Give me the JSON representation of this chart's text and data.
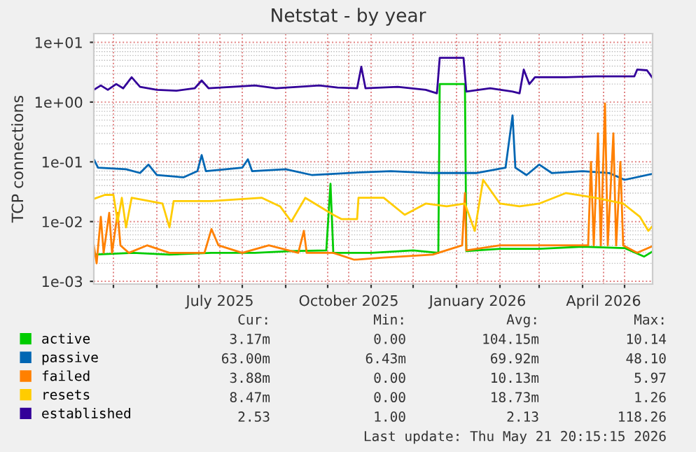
{
  "chart_data": {
    "type": "line",
    "title": "Netstat - by year",
    "ylabel": "TCP connections",
    "log": "y",
    "grid": true,
    "legend": "bottom left",
    "marker": "none",
    "line_style": "solid",
    "xlim": [
      "2025-04-17",
      "2026-05-21"
    ],
    "xticks": [
      {
        "value": "2025-05-01",
        "label": null
      },
      {
        "value": "2025-06-01",
        "label": null
      },
      {
        "value": "2025-07-01",
        "label": null
      },
      {
        "value": "2025-07-16",
        "label": "July 2025"
      },
      {
        "value": "2025-08-01",
        "label": null
      },
      {
        "value": "2025-09-01",
        "label": null
      },
      {
        "value": "2025-10-01",
        "label": null
      },
      {
        "value": "2025-10-16",
        "label": "October 2025"
      },
      {
        "value": "2025-11-01",
        "label": null
      },
      {
        "value": "2025-12-01",
        "label": null
      },
      {
        "value": "2026-01-01",
        "label": null
      },
      {
        "value": "2026-01-16",
        "label": "January 2026"
      },
      {
        "value": "2026-02-01",
        "label": null
      },
      {
        "value": "2026-03-01",
        "label": null
      },
      {
        "value": "2026-04-01",
        "label": null
      },
      {
        "value": "2026-04-16",
        "label": "April 2026"
      },
      {
        "value": "2026-05-01",
        "label": null
      }
    ],
    "ylim": [
      0.0009,
      14
    ],
    "yticks": [
      {
        "value": 0.001,
        "label": "1e-03"
      },
      {
        "value": 0.01,
        "label": "1e-02"
      },
      {
        "value": 0.1,
        "label": "1e-01"
      },
      {
        "value": 1,
        "label": "1e+00"
      },
      {
        "value": 10,
        "label": "1e+01"
      }
    ],
    "series": [
      {
        "name": "active",
        "color": "#00cc00",
        "x": [
          "2025-04-17",
          "2025-05-15",
          "2025-06-10",
          "2025-07-10",
          "2025-08-10",
          "2025-09-05",
          "2025-09-30",
          "2025-10-03",
          "2025-10-05",
          "2025-11-01",
          "2025-12-01",
          "2025-12-19",
          "2025-12-20",
          "2026-01-07",
          "2026-01-08",
          "2026-02-01",
          "2026-03-01",
          "2026-04-01",
          "2026-05-01",
          "2026-05-15",
          "2026-05-21"
        ],
        "values": [
          0.0028,
          0.003,
          0.0028,
          0.003,
          0.003,
          0.0032,
          0.0033,
          0.043,
          0.003,
          0.003,
          0.0033,
          0.003,
          2.0,
          2.0,
          0.0032,
          0.0035,
          0.0035,
          0.0038,
          0.0036,
          0.0026,
          0.00317
        ]
      },
      {
        "name": "passive",
        "color": "#0066b3",
        "x": [
          "2025-04-17",
          "2025-04-20",
          "2025-05-10",
          "2025-05-20",
          "2025-05-26",
          "2025-06-01",
          "2025-06-20",
          "2025-06-30",
          "2025-07-03",
          "2025-07-06",
          "2025-08-01",
          "2025-08-05",
          "2025-08-08",
          "2025-09-01",
          "2025-09-20",
          "2025-10-15",
          "2025-11-15",
          "2025-12-15",
          "2026-01-15",
          "2026-02-05",
          "2026-02-10",
          "2026-02-12",
          "2026-02-20",
          "2026-03-01",
          "2026-03-10",
          "2026-04-01",
          "2026-04-20",
          "2026-05-01",
          "2026-05-21"
        ],
        "values": [
          0.11,
          0.08,
          0.075,
          0.065,
          0.09,
          0.06,
          0.055,
          0.07,
          0.13,
          0.07,
          0.08,
          0.11,
          0.07,
          0.075,
          0.06,
          0.065,
          0.07,
          0.065,
          0.065,
          0.08,
          0.6,
          0.08,
          0.06,
          0.09,
          0.065,
          0.07,
          0.065,
          0.05,
          0.063
        ]
      },
      {
        "name": "failed",
        "color": "#ff8000",
        "x": [
          "2025-04-17",
          "2025-04-19",
          "2025-04-22",
          "2025-04-24",
          "2025-04-28",
          "2025-04-30",
          "2025-05-04",
          "2025-05-06",
          "2025-05-12",
          "2025-05-25",
          "2025-06-10",
          "2025-07-05",
          "2025-07-10",
          "2025-07-15",
          "2025-08-01",
          "2025-08-20",
          "2025-09-10",
          "2025-09-14",
          "2025-09-16",
          "2025-10-05",
          "2025-10-20",
          "2025-11-10",
          "2025-12-15",
          "2026-01-05",
          "2026-01-07",
          "2026-01-08",
          "2026-02-01",
          "2026-03-01",
          "2026-04-05",
          "2026-04-07",
          "2026-04-09",
          "2026-04-12",
          "2026-04-14",
          "2026-04-17",
          "2026-04-19",
          "2026-04-23",
          "2026-04-25",
          "2026-04-28",
          "2026-04-30",
          "2026-05-10",
          "2026-05-21"
        ],
        "values": [
          0.004,
          0.002,
          0.012,
          0.003,
          0.014,
          0.003,
          0.014,
          0.004,
          0.003,
          0.004,
          0.003,
          0.003,
          0.0075,
          0.004,
          0.003,
          0.004,
          0.003,
          0.007,
          0.003,
          0.003,
          0.0023,
          0.0025,
          0.0028,
          0.004,
          0.03,
          0.0033,
          0.004,
          0.004,
          0.004,
          0.1,
          0.004,
          0.3,
          0.004,
          0.95,
          0.004,
          0.3,
          0.004,
          0.1,
          0.004,
          0.003,
          0.00388
        ]
      },
      {
        "name": "resets",
        "color": "#ffcc00",
        "x": [
          "2025-04-17",
          "2025-04-25",
          "2025-05-01",
          "2025-05-04",
          "2025-05-07",
          "2025-05-10",
          "2025-05-14",
          "2025-06-05",
          "2025-06-10",
          "2025-06-13",
          "2025-07-10",
          "2025-08-15",
          "2025-08-28",
          "2025-09-05",
          "2025-09-15",
          "2025-10-05",
          "2025-10-11",
          "2025-10-22",
          "2025-10-23",
          "2025-11-10",
          "2025-11-25",
          "2025-12-10",
          "2025-12-25",
          "2026-01-07",
          "2026-01-14",
          "2026-01-20",
          "2026-02-01",
          "2026-02-15",
          "2026-03-01",
          "2026-03-20",
          "2026-04-10",
          "2026-04-30",
          "2026-05-12",
          "2026-05-18",
          "2026-05-21"
        ],
        "values": [
          0.024,
          0.028,
          0.028,
          0.01,
          0.025,
          0.008,
          0.025,
          0.02,
          0.008,
          0.022,
          0.022,
          0.025,
          0.018,
          0.01,
          0.025,
          0.013,
          0.011,
          0.011,
          0.025,
          0.025,
          0.013,
          0.02,
          0.018,
          0.02,
          0.007,
          0.05,
          0.02,
          0.018,
          0.02,
          0.03,
          0.025,
          0.02,
          0.012,
          0.007,
          0.00847
        ]
      },
      {
        "name": "established",
        "color": "#330099",
        "x": [
          "2025-04-17",
          "2025-04-22",
          "2025-04-27",
          "2025-05-03",
          "2025-05-08",
          "2025-05-14",
          "2025-05-20",
          "2025-06-01",
          "2025-06-15",
          "2025-06-28",
          "2025-07-03",
          "2025-07-08",
          "2025-07-25",
          "2025-08-10",
          "2025-08-25",
          "2025-09-10",
          "2025-09-25",
          "2025-10-08",
          "2025-10-22",
          "2025-10-25",
          "2025-10-28",
          "2025-11-20",
          "2025-12-10",
          "2025-12-18",
          "2025-12-20",
          "2026-01-06",
          "2026-01-08",
          "2026-01-25",
          "2026-02-10",
          "2026-02-15",
          "2026-02-18",
          "2026-02-22",
          "2026-02-26",
          "2026-03-20",
          "2026-04-10",
          "2026-04-20",
          "2026-05-08",
          "2026-05-10",
          "2026-05-17",
          "2026-05-21"
        ],
        "values": [
          1.6,
          1.9,
          1.6,
          2.0,
          1.7,
          2.6,
          1.8,
          1.6,
          1.55,
          1.7,
          2.3,
          1.7,
          1.8,
          1.9,
          1.7,
          1.8,
          1.9,
          1.75,
          1.7,
          3.9,
          1.7,
          1.8,
          1.6,
          1.4,
          5.5,
          5.5,
          1.5,
          1.7,
          1.5,
          1.4,
          3.5,
          2.0,
          2.6,
          2.6,
          2.7,
          2.7,
          2.7,
          3.5,
          3.4,
          2.53
        ]
      }
    ],
    "annotations": [
      "Cur:",
      "Min:",
      "Avg:",
      "Max:",
      "3.17m",
      "0.00",
      "104.15m",
      "10.14",
      "63.00m",
      "6.43m",
      "69.92m",
      "48.10",
      "3.88m",
      "0.00",
      "10.13m",
      "5.97",
      "8.47m",
      "0.00",
      "18.73m",
      "1.26",
      "2.53",
      "1.00",
      "2.13",
      "118.26",
      "Last update: Thu May 21 20:15:15 2026"
    ]
  }
}
